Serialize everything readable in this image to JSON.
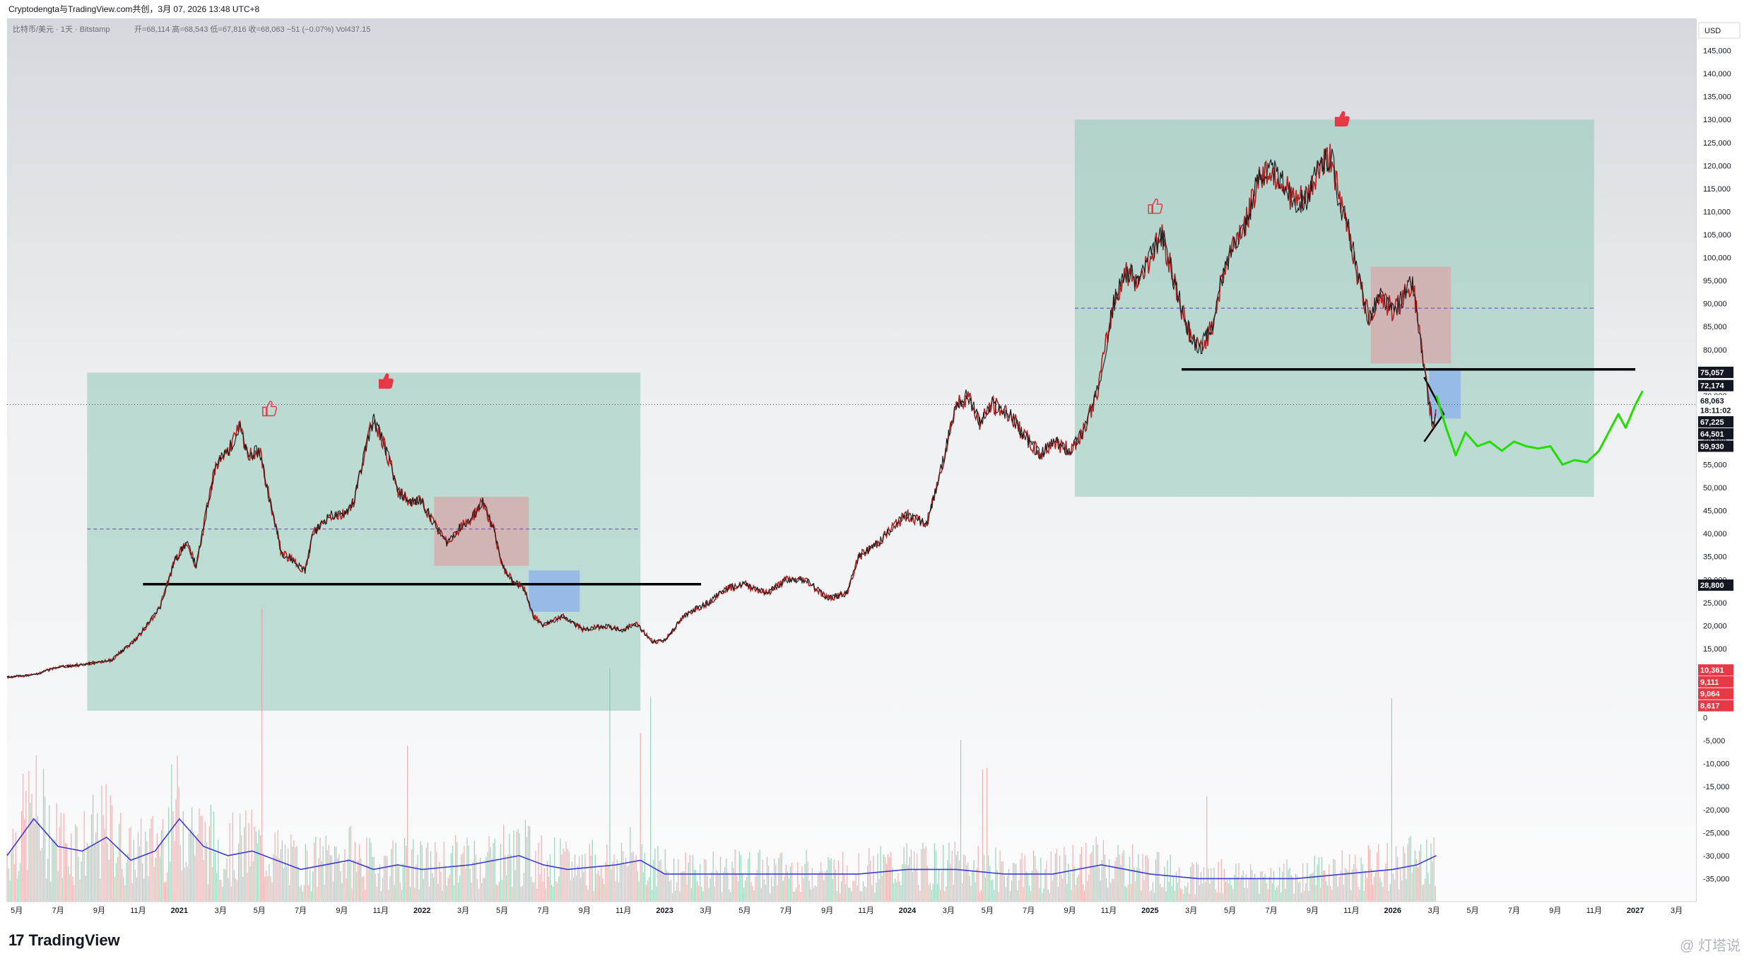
{
  "header": {
    "share_line": "Cryptodengta与TradingView.com共创，3月 07, 2026 13:48 UTC+8"
  },
  "chart_data": {
    "type": "line",
    "title": "比特币/美元 · 1天 · Bitstamp",
    "ohlc_line": "开=68,114  高=68,543  低=67,816  收=68,063  −51 (−0.07%)  Vol437.15",
    "currency_label": "USD",
    "x_tick_labels": [
      "5月",
      "7月",
      "9月",
      "11月",
      "2021",
      "3月",
      "5月",
      "7月",
      "9月",
      "11月",
      "2022",
      "3月",
      "5月",
      "7月",
      "9月",
      "11月",
      "2023",
      "3月",
      "5月",
      "7月",
      "9月",
      "11月",
      "2024",
      "3月",
      "5月",
      "7月",
      "9月",
      "11月",
      "2025",
      "3月",
      "5月",
      "7月",
      "9月",
      "11月",
      "2026",
      "3月",
      "5月",
      "7月",
      "9月",
      "11月",
      "2027",
      "3月"
    ],
    "x_tick_pos": [
      2020.33,
      2020.5,
      2020.67,
      2020.83,
      2021.0,
      2021.17,
      2021.33,
      2021.5,
      2021.67,
      2021.83,
      2022.0,
      2022.17,
      2022.33,
      2022.5,
      2022.67,
      2022.83,
      2023.0,
      2023.17,
      2023.33,
      2023.5,
      2023.67,
      2023.83,
      2024.0,
      2024.17,
      2024.33,
      2024.5,
      2024.67,
      2024.83,
      2025.0,
      2025.17,
      2025.33,
      2025.5,
      2025.67,
      2025.83,
      2026.0,
      2026.17,
      2026.33,
      2026.5,
      2026.67,
      2026.83,
      2027.0,
      2027.17
    ],
    "x_range": [
      2020.29,
      2027.25
    ],
    "y_range": [
      -40000,
      152000
    ],
    "y_ticks": [
      145000,
      140000,
      135000,
      130000,
      125000,
      120000,
      115000,
      110000,
      105000,
      100000,
      95000,
      90000,
      85000,
      80000,
      75000,
      70000,
      65000,
      60000,
      55000,
      50000,
      45000,
      40000,
      35000,
      30000,
      25000,
      20000,
      15000,
      10000,
      5000,
      0,
      -5000,
      -10000,
      -15000,
      -20000,
      -25000,
      -30000,
      -35000
    ],
    "y_tick_labels": [
      "145,000",
      "140,000",
      "135,000",
      "130,000",
      "125,000",
      "120,000",
      "115,000",
      "110,000",
      "105,000",
      "100,000",
      "95,000",
      "90,000",
      "85,000",
      "80,000",
      "75,000",
      "70,000",
      "65,000",
      "60,000",
      "55,000",
      "50,000",
      "45,000",
      "40,000",
      "35,000",
      "30,000",
      "25,000",
      "20,000",
      "15,000",
      "10,000",
      "5,000",
      "0",
      "-5,000",
      "-10,000",
      "-15,000",
      "-20,000",
      "-25,000",
      "-30,000",
      "-35,000"
    ],
    "price_series": {
      "name": "BTC/USD",
      "x": [
        2020.29,
        2020.4,
        2020.5,
        2020.6,
        2020.72,
        2020.83,
        2020.92,
        2020.98,
        2021.03,
        2021.07,
        2021.12,
        2021.15,
        2021.2,
        2021.25,
        2021.28,
        2021.33,
        2021.37,
        2021.42,
        2021.47,
        2021.52,
        2021.55,
        2021.62,
        2021.67,
        2021.72,
        2021.76,
        2021.8,
        2021.84,
        2021.87,
        2021.9,
        2021.95,
        2022.0,
        2022.05,
        2022.1,
        2022.15,
        2022.2,
        2022.25,
        2022.3,
        2022.33,
        2022.37,
        2022.42,
        2022.46,
        2022.5,
        2022.58,
        2022.67,
        2022.75,
        2022.83,
        2022.88,
        2022.95,
        2023.0,
        2023.08,
        2023.12,
        2023.18,
        2023.25,
        2023.33,
        2023.42,
        2023.5,
        2023.58,
        2023.67,
        2023.75,
        2023.8,
        2023.88,
        2023.95,
        2024.0,
        2024.08,
        2024.13,
        2024.2,
        2024.25,
        2024.3,
        2024.35,
        2024.42,
        2024.5,
        2024.55,
        2024.6,
        2024.67,
        2024.72,
        2024.78,
        2024.85,
        2024.9,
        2024.95,
        2025.0,
        2025.05,
        2025.1,
        2025.15,
        2025.2,
        2025.25,
        2025.3,
        2025.35,
        2025.4,
        2025.45,
        2025.5,
        2025.55,
        2025.6,
        2025.65,
        2025.7,
        2025.75,
        2025.78,
        2025.82,
        2025.86,
        2025.9,
        2025.95,
        2026.0,
        2026.05,
        2026.08,
        2026.1,
        2026.13,
        2026.15,
        2026.17,
        2026.18
      ],
      "y": [
        8800,
        9300,
        11000,
        11500,
        12500,
        17500,
        24000,
        34000,
        38000,
        33000,
        47000,
        55000,
        58000,
        63000,
        57000,
        58000,
        48000,
        36000,
        34000,
        32000,
        40000,
        44000,
        44000,
        47000,
        57000,
        65000,
        60000,
        55000,
        49000,
        47000,
        47000,
        42000,
        38000,
        41000,
        43000,
        47000,
        40000,
        33000,
        30000,
        28000,
        22000,
        20000,
        22000,
        19000,
        20000,
        19000,
        20500,
        16500,
        16800,
        22000,
        23500,
        25000,
        28000,
        29000,
        27000,
        30000,
        30000,
        26000,
        27000,
        35000,
        38000,
        42000,
        44000,
        42000,
        52000,
        68000,
        70000,
        64000,
        68000,
        66000,
        60000,
        57000,
        60000,
        58000,
        62000,
        70000,
        90000,
        97000,
        95000,
        100000,
        105000,
        95000,
        85000,
        80000,
        84000,
        96000,
        104000,
        108000,
        118000,
        119000,
        116000,
        112000,
        113000,
        120000,
        122000,
        112000,
        106000,
        95000,
        87000,
        92000,
        88000,
        92000,
        95000,
        88000,
        75000,
        68000,
        63000,
        68063
      ]
    },
    "projection_series": {
      "name": "projection",
      "color": "#22dd00",
      "x": [
        2026.18,
        2026.22,
        2026.26,
        2026.3,
        2026.35,
        2026.4,
        2026.45,
        2026.5,
        2026.55,
        2026.6,
        2026.65,
        2026.7,
        2026.75,
        2026.8,
        2026.85,
        2026.9,
        2026.93,
        2026.96,
        2027.0,
        2027.03
      ],
      "y": [
        70000,
        63000,
        57000,
        62000,
        59000,
        60000,
        58000,
        60000,
        59000,
        58500,
        59000,
        55000,
        56000,
        55500,
        58000,
        63000,
        66000,
        63000,
        68000,
        71000
      ]
    },
    "volume": {
      "ma_color": "#3b3bd8",
      "x": [
        2020.29,
        2020.4,
        2020.5,
        2020.6,
        2020.7,
        2020.8,
        2020.9,
        2021.0,
        2021.05,
        2021.1,
        2021.2,
        2021.3,
        2021.4,
        2021.5,
        2021.6,
        2021.7,
        2021.8,
        2021.9,
        2022.0,
        2022.2,
        2022.4,
        2022.5,
        2022.6,
        2022.8,
        2022.9,
        2023.0,
        2023.2,
        2023.4,
        2023.6,
        2023.8,
        2024.0,
        2024.2,
        2024.4,
        2024.6,
        2024.8,
        2024.9,
        2025.0,
        2025.2,
        2025.4,
        2025.6,
        2025.8,
        2026.0,
        2026.1,
        2026.18
      ],
      "ma": [
        -30000,
        -22000,
        -28000,
        -29000,
        -26000,
        -31000,
        -29000,
        -22000,
        -25000,
        -28000,
        -30000,
        -29000,
        -31000,
        -33000,
        -32000,
        -31000,
        -33000,
        -32000,
        -33000,
        -32000,
        -30000,
        -32000,
        -33000,
        -32000,
        -31000,
        -34000,
        -34000,
        -34000,
        -34000,
        -34000,
        -33000,
        -33000,
        -34000,
        -34000,
        -32000,
        -33000,
        -34000,
        -35000,
        -35000,
        -35000,
        -34000,
        -33000,
        -32000,
        -30000
      ]
    },
    "shapes": {
      "regions": [
        {
          "x0": 2020.62,
          "x1": 2022.9,
          "y0": 1500,
          "y1": 75000,
          "color": "#8fc9b8",
          "opacity": 0.55
        },
        {
          "x0": 2024.69,
          "x1": 2026.83,
          "y0": 48000,
          "y1": 130000,
          "color": "#8fc9b8",
          "opacity": 0.55
        },
        {
          "x0": 2022.05,
          "x1": 2022.44,
          "y0": 33000,
          "y1": 48000,
          "color": "#d8a7aa",
          "opacity": 0.75
        },
        {
          "x0": 2022.44,
          "x1": 2022.65,
          "y0": 23000,
          "y1": 32000,
          "color": "#8db3ea",
          "opacity": 0.8
        },
        {
          "x0": 2025.91,
          "x1": 2026.24,
          "y0": 77000,
          "y1": 98000,
          "color": "#d8a7aa",
          "opacity": 0.75
        },
        {
          "x0": 2026.15,
          "x1": 2026.28,
          "y0": 65000,
          "y1": 76000,
          "color": "#8db3ea",
          "opacity": 0.8
        }
      ],
      "support_lines": [
        {
          "x0": 2020.85,
          "x1": 2023.15,
          "y": 29000
        },
        {
          "x0": 2025.13,
          "x1": 2027.0,
          "y": 75700
        }
      ],
      "dashed_levels": [
        {
          "x0": 2020.62,
          "x1": 2022.9,
          "y": 41000
        },
        {
          "x0": 2024.69,
          "x1": 2026.83,
          "y": 89000
        }
      ],
      "current_price_y": 68063,
      "triangle": [
        [
          2026.13,
          60000
        ],
        [
          2026.21,
          66000
        ],
        [
          2026.13,
          74000
        ]
      ]
    },
    "axis_tags": [
      {
        "label": "75,057",
        "y": 75057,
        "bg": "#131722",
        "fg": "#ffffff"
      },
      {
        "label": "72,174",
        "y": 72174,
        "bg": "#131722",
        "fg": "#ffffff"
      },
      {
        "label": "68,063",
        "y": 68900,
        "bg": "#ffffff",
        "fg": "#131722"
      },
      {
        "label": "18:11:02",
        "y": 66800,
        "bg": "#ffffff",
        "fg": "#131722"
      },
      {
        "label": "67,225",
        "y": 64300,
        "bg": "#131722",
        "fg": "#ffffff"
      },
      {
        "label": "64,501",
        "y": 61700,
        "bg": "#131722",
        "fg": "#ffffff"
      },
      {
        "label": "59,930",
        "y": 59000,
        "bg": "#131722",
        "fg": "#ffffff"
      },
      {
        "label": "28,800",
        "y": 28800,
        "bg": "#131722",
        "fg": "#ffffff"
      },
      {
        "label": "10,361",
        "y": 10361,
        "bg": "#e53946",
        "fg": "#ffffff"
      },
      {
        "label": "9,111",
        "y": 7800,
        "bg": "#e53946",
        "fg": "#ffffff"
      },
      {
        "label": "9,064",
        "y": 5200,
        "bg": "#e53946",
        "fg": "#ffffff"
      },
      {
        "label": "8,617",
        "y": 2600,
        "bg": "#e53946",
        "fg": "#ffffff"
      }
    ],
    "markers": [
      {
        "x": 2021.37,
        "y": 67000,
        "type": "thumb-outline"
      },
      {
        "x": 2021.85,
        "y": 73000,
        "type": "thumb-solid"
      },
      {
        "x": 2025.02,
        "y": 111000,
        "type": "thumb-outline"
      },
      {
        "x": 2025.79,
        "y": 130000,
        "type": "thumb-solid"
      }
    ],
    "grid": false,
    "legend": "none"
  },
  "footer": {
    "logo_text": "TradingView",
    "logo_mark": "17",
    "watermark": "@ 灯塔说"
  }
}
